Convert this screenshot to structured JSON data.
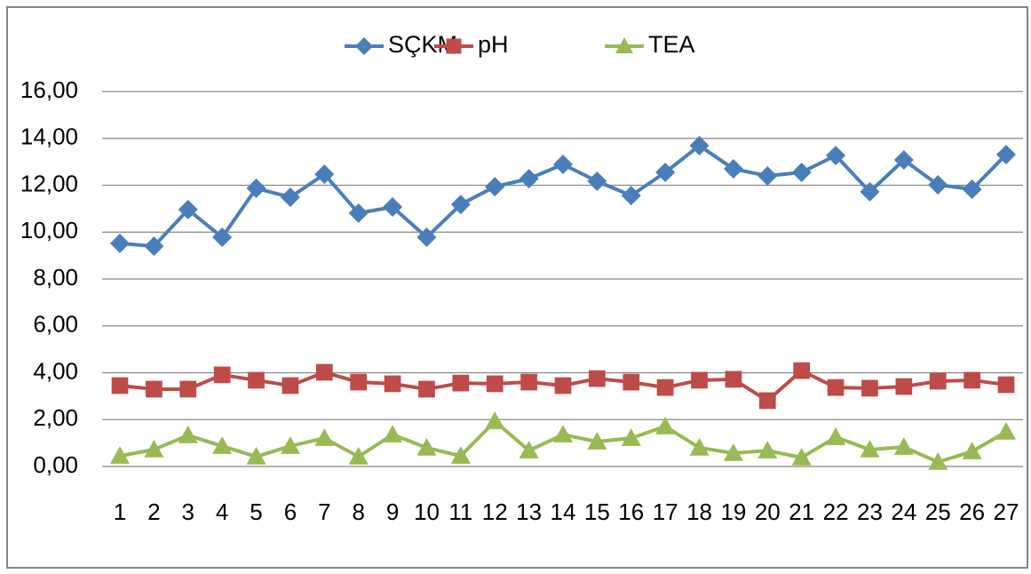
{
  "chart_data": {
    "type": "line",
    "categories": [
      "1",
      "2",
      "3",
      "4",
      "5",
      "6",
      "7",
      "8",
      "9",
      "10",
      "11",
      "12",
      "13",
      "14",
      "15",
      "16",
      "17",
      "18",
      "19",
      "20",
      "21",
      "22",
      "23",
      "24",
      "25",
      "26",
      "27"
    ],
    "series": [
      {
        "name": "SÇKM",
        "color": "#4a7ebb",
        "marker": "diamond",
        "values": [
          9.52,
          9.4,
          10.96,
          9.78,
          11.87,
          11.49,
          12.47,
          10.81,
          11.07,
          9.78,
          11.18,
          11.94,
          12.28,
          12.89,
          12.17,
          11.56,
          12.55,
          13.69,
          12.7,
          12.4,
          12.55,
          13.27,
          11.72,
          13.08,
          12.02,
          11.83,
          13.31
        ]
      },
      {
        "name": "pH",
        "color": "#be4b48",
        "marker": "square",
        "values": [
          3.45,
          3.3,
          3.3,
          3.91,
          3.68,
          3.45,
          4.02,
          3.6,
          3.53,
          3.3,
          3.56,
          3.53,
          3.6,
          3.45,
          3.75,
          3.6,
          3.37,
          3.68,
          3.72,
          2.81,
          4.09,
          3.37,
          3.34,
          3.41,
          3.64,
          3.68,
          3.49
        ]
      },
      {
        "name": "TEA",
        "color": "#98b954",
        "marker": "triangle",
        "values": [
          0.45,
          0.72,
          1.33,
          0.87,
          0.42,
          0.87,
          1.21,
          0.42,
          1.36,
          0.8,
          0.45,
          1.93,
          0.68,
          1.36,
          1.06,
          1.21,
          1.71,
          0.8,
          0.57,
          0.68,
          0.38,
          1.25,
          0.72,
          0.83,
          0.19,
          0.64,
          1.48
        ]
      }
    ],
    "ylim": [
      0,
      16
    ],
    "yticks": [
      {
        "value": 0,
        "label": "0,00"
      },
      {
        "value": 2,
        "label": "2,00"
      },
      {
        "value": 4,
        "label": "4,00"
      },
      {
        "value": 6,
        "label": "6,00"
      },
      {
        "value": 8,
        "label": "8,00"
      },
      {
        "value": 10,
        "label": "10,00"
      },
      {
        "value": 12,
        "label": "12,00"
      },
      {
        "value": 14,
        "label": "14,00"
      },
      {
        "value": 16,
        "label": "16,00"
      }
    ],
    "grid": true,
    "legend": "top"
  }
}
